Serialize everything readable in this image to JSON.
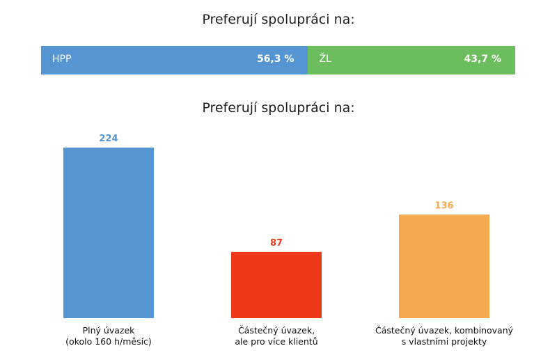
{
  "chart_data": [
    {
      "type": "bar",
      "orientation": "horizontal-stacked",
      "title": "Preferují spolupráci na:",
      "series": [
        {
          "name": "HPP",
          "value": 56.3,
          "label": "56,3 %",
          "color": "#5495d2"
        },
        {
          "name": "ŽL",
          "value": 43.7,
          "label": "43,7 %",
          "color": "#6cbd5e"
        }
      ]
    },
    {
      "type": "bar",
      "title": "Preferují spolupráci na:",
      "categories": [
        [
          "Plný úvazek",
          "(okolo 160 h/měsíc)"
        ],
        [
          "Částečný úvazek,",
          "ale pro více klientů"
        ],
        [
          "Částečný úvazek, kombinovaný",
          "s vlastními projekty"
        ]
      ],
      "values": [
        224,
        87,
        136
      ],
      "colors": [
        "#5495d2",
        "#ee3a1a",
        "#f5aa52"
      ],
      "ylim": [
        0,
        224
      ],
      "grid": false,
      "legend": "none"
    }
  ]
}
